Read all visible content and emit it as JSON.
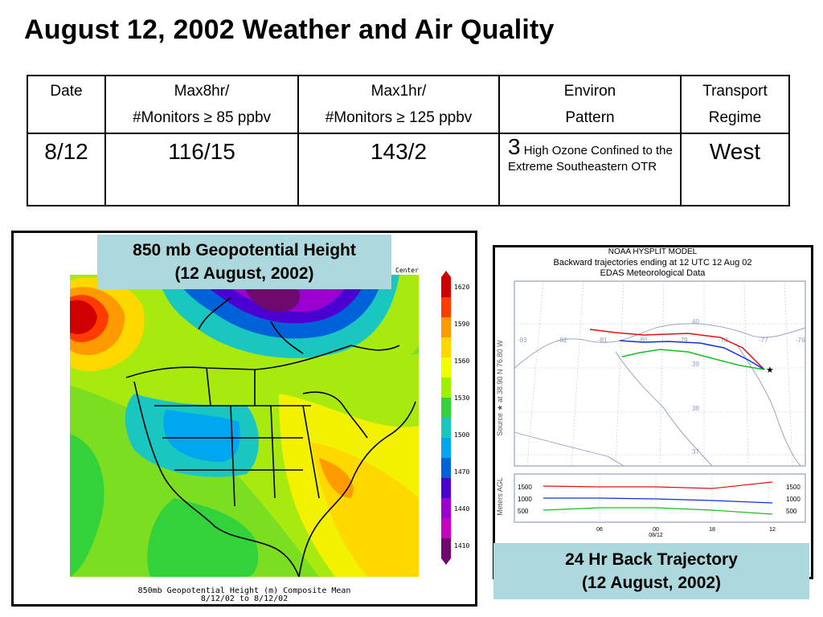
{
  "title": "August 12, 2002 Weather and Air Quality",
  "table": {
    "headers": [
      [
        "Date"
      ],
      [
        "Max8hr/",
        "#Monitors ≥ 85 ppbv"
      ],
      [
        "Max1hr/",
        "#Monitors ≥ 125 ppbv"
      ],
      [
        "Environ",
        "Pattern"
      ],
      [
        "Transport",
        "Regime"
      ]
    ],
    "row": {
      "date": "8/12",
      "max8hr": "116/15",
      "max1hr": "143/2",
      "environ_number": "3",
      "environ_text": "High Ozone Confined to the Extreme Southeastern OTR",
      "transport": "West"
    }
  },
  "map": {
    "label_line1": "850 mb Geopotential Height",
    "label_line2": "(12 August, 2002)",
    "caption_line1": "850mb Geopotential Height (m) Composite Mean",
    "caption_line2": "8/12/02  to 8/12/02",
    "corner_text": "Center",
    "colorbar_ticks": [
      "1620",
      "1590",
      "1560",
      "1530",
      "1500",
      "1470",
      "1440",
      "1410"
    ],
    "colorbar_colors": [
      "#d10000",
      "#ff3c00",
      "#ff9a00",
      "#ffd800",
      "#f2ff00",
      "#9cf000",
      "#33d13a",
      "#19c7c0",
      "#00a6ee",
      "#0062d8",
      "#4a00d0",
      "#9a00d0",
      "#c800c0",
      "#6e0a6e"
    ]
  },
  "trajectory": {
    "label_line1": "24 Hr Back Trajectory",
    "label_line2": "(12 August, 2002)",
    "header_line1": "NOAA HYSPLIT MODEL",
    "header_line2": "Backward trajectories ending at 12 UTC 12 Aug 02",
    "header_line3": "EDAS Meteorological Data",
    "source_label": "Source ★ at  38.90 N  76.80 W",
    "lon_labels": [
      "-83",
      "-82",
      "-81",
      "-80",
      "-79",
      "-78",
      "-77",
      "-76"
    ],
    "lat_labels": [
      "40",
      "39",
      "38",
      "37"
    ],
    "height_axis_label": "Meters AGL",
    "height_levels": [
      "1500",
      "1000",
      "500"
    ],
    "time_labels": [
      "06",
      "00",
      "18",
      "12"
    ],
    "time_sublabel": "08/12"
  }
}
